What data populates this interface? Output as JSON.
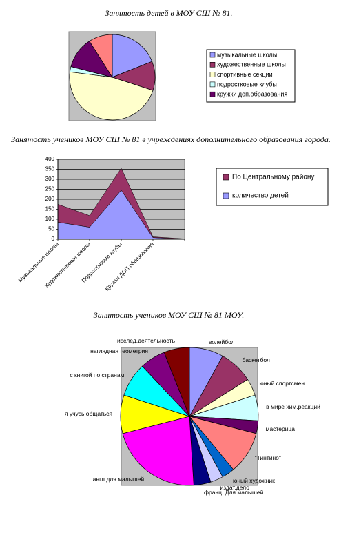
{
  "chart_data": [
    {
      "type": "pie",
      "title": "Занятость детей в МОУ СШ № 81.",
      "categories": [
        "музыкальные школы",
        "художественные школы",
        "спортивные секции",
        "подростковые клубы",
        "кружки доп.образования",
        null
      ],
      "values": [
        19,
        11,
        47,
        2,
        12,
        9
      ],
      "colors": [
        "#9999ff",
        "#993366",
        "#ffffcc",
        "#ccffff",
        "#660066",
        "#ff8080"
      ],
      "legend": "right"
    },
    {
      "type": "area",
      "title": "Занятость учеников МОУ СШ № 81 в учреждениях дополнительного образования города.",
      "categories": [
        "Музыкальные школы",
        "Художественные школы",
        "Подростковые клубы",
        "Кружки ДОП образования",
        null
      ],
      "series": [
        {
          "name": "количество детей",
          "color": "#9999ff",
          "values": [
            85,
            60,
            245,
            8,
            0
          ]
        },
        {
          "name": "По Центральному району",
          "color": "#993366",
          "values": [
            90,
            58,
            110,
            4,
            2
          ]
        }
      ],
      "stacked": true,
      "ylim": [
        0,
        400
      ],
      "yticks": [
        0,
        50,
        100,
        150,
        200,
        250,
        300,
        350,
        400
      ],
      "grid": true,
      "legend": "right"
    },
    {
      "type": "pie",
      "title": "Занятость учеников МОУ СШ № 81 МОУ.",
      "categories": [
        "волейбол",
        "баскетбол",
        "юный спортсмен",
        "в мире хим.реакций",
        "мастерица",
        "\"Тинтино\"",
        "юный художник",
        "издат.дело",
        "франц. Для малышей",
        "англ.для малышей",
        "я учусь общаться",
        "с книгой по странам",
        "наглядная геометрия",
        "исслед.деятельность"
      ],
      "values": [
        8,
        8,
        4,
        6,
        3,
        10,
        3,
        3,
        4,
        22,
        9,
        8,
        6,
        6
      ],
      "colors": [
        "#9999ff",
        "#993366",
        "#ffffcc",
        "#ccffff",
        "#660066",
        "#ff8080",
        "#0066cc",
        "#ccccff",
        "#000080",
        "#ff00ff",
        "#ffff00",
        "#00ffff",
        "#800080",
        "#800000"
      ],
      "labels": "outside"
    }
  ]
}
